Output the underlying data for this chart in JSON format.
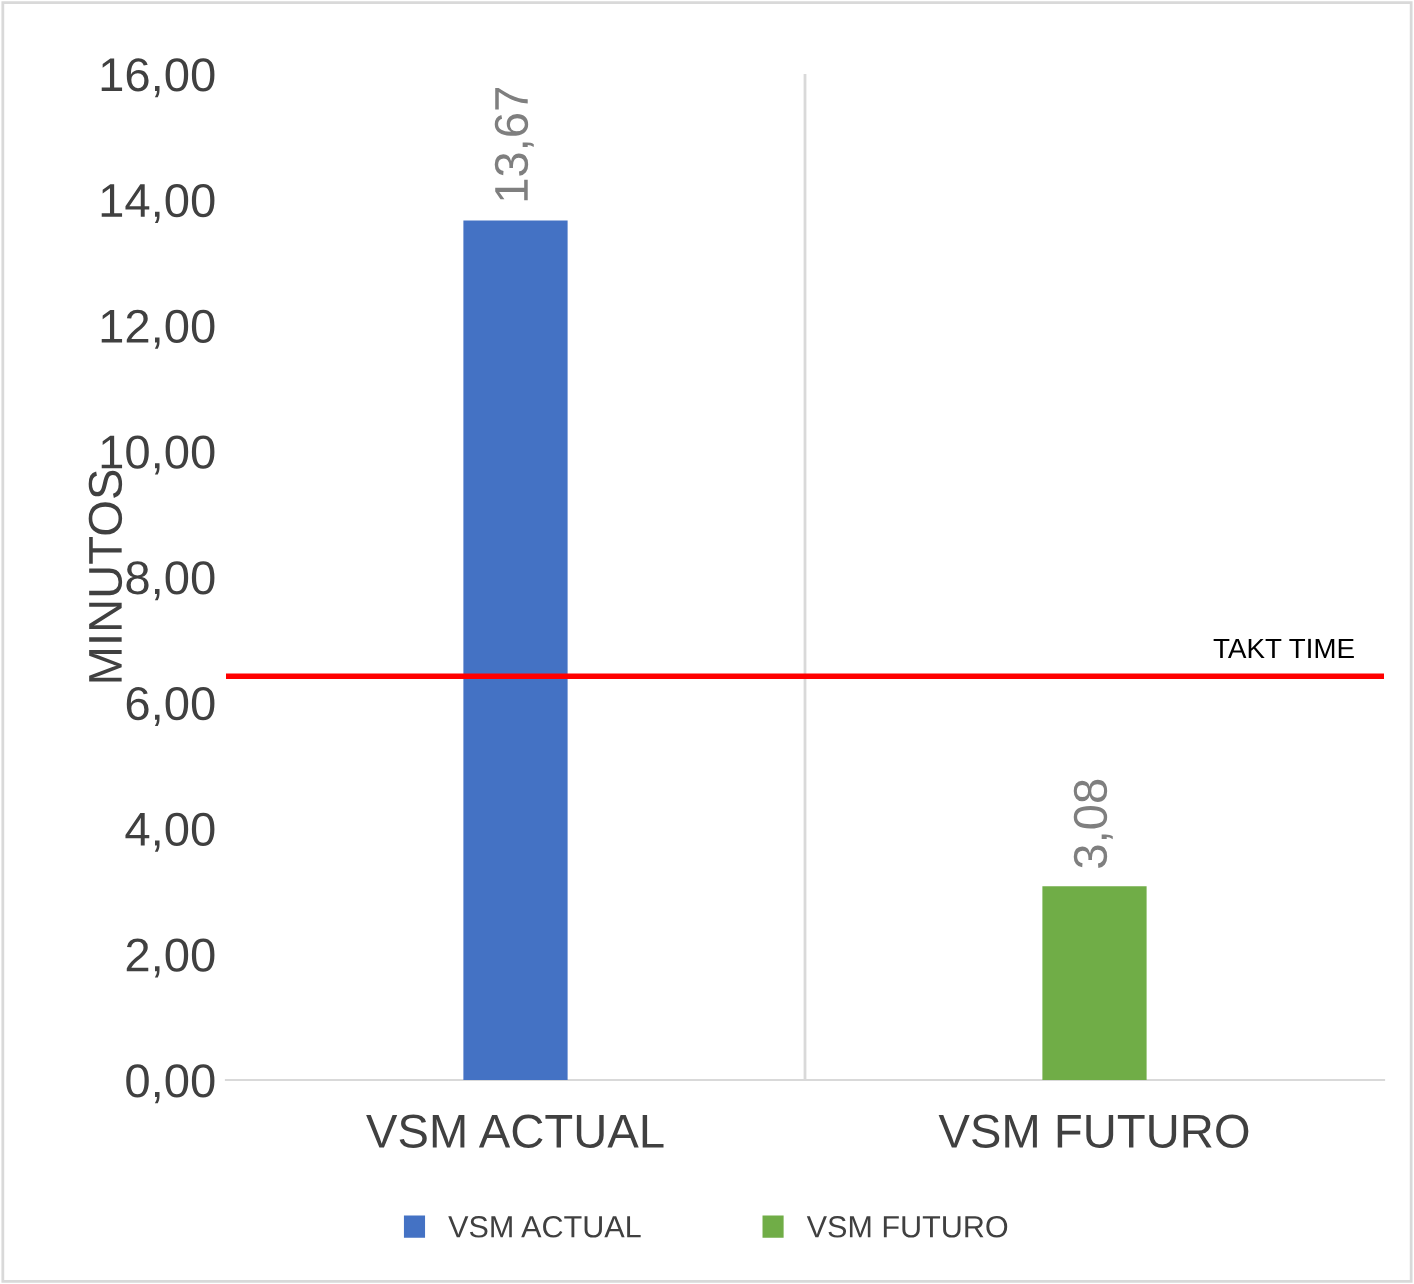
{
  "chart_data": {
    "type": "bar",
    "ylabel": "MINUTOS",
    "categories": [
      "VSM ACTUAL",
      "VSM FUTURO"
    ],
    "series": [
      {
        "name": "VSM ACTUAL",
        "color": "#4472c4",
        "values": [
          13.67,
          null
        ],
        "value_labels": [
          "13,67",
          null
        ]
      },
      {
        "name": "VSM FUTURO",
        "color": "#70ad47",
        "values": [
          null,
          3.08
        ],
        "value_labels": [
          null,
          "3,08"
        ]
      }
    ],
    "ylim": [
      0,
      16
    ],
    "yticks": [
      {
        "value": 0,
        "label": "0,00"
      },
      {
        "value": 2,
        "label": "2,00"
      },
      {
        "value": 4,
        "label": "4,00"
      },
      {
        "value": 6,
        "label": "6,00"
      },
      {
        "value": 8,
        "label": "8,00"
      },
      {
        "value": 10,
        "label": "10,00"
      },
      {
        "value": 12,
        "label": "12,00"
      },
      {
        "value": 14,
        "label": "14,00"
      },
      {
        "value": 16,
        "label": "16,00"
      }
    ],
    "ref_lines": [
      {
        "axis": "y",
        "value": 6.42,
        "label": "TAKT TIME",
        "color": "#ff0000"
      }
    ],
    "grid": "x",
    "legend": "bottom"
  }
}
